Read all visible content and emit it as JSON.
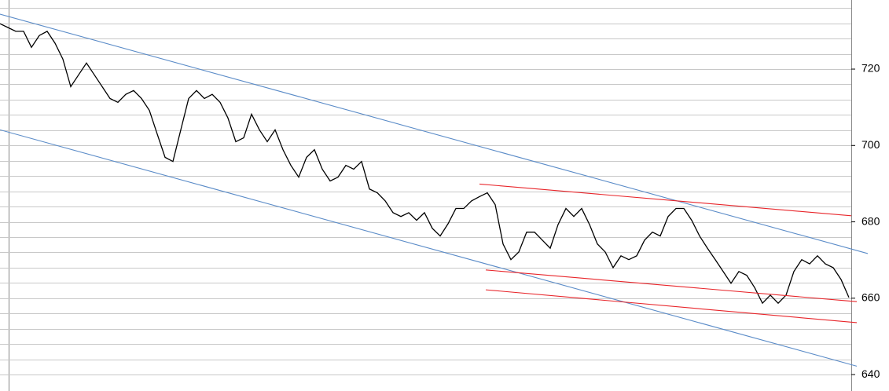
{
  "chart_data": {
    "type": "line",
    "color": "#000000",
    "values": [
      731.9,
      730.9,
      729.9,
      729.9,
      725.7,
      728.8,
      729.9,
      726.8,
      722.6,
      715.4,
      718.5,
      721.6,
      718.5,
      715.4,
      712.3,
      711.3,
      713.4,
      714.4,
      712.3,
      709.2,
      703.0,
      696.9,
      695.8,
      704.1,
      712.3,
      714.4,
      712.3,
      713.4,
      711.3,
      707.2,
      701.0,
      702.0,
      708.2,
      704.1,
      701.0,
      704.1,
      698.9,
      694.8,
      691.7,
      696.9,
      698.9,
      693.8,
      690.7,
      691.7,
      694.8,
      693.8,
      695.8,
      688.6,
      687.6,
      685.5,
      682.4,
      681.4,
      682.4,
      680.4,
      682.4,
      678.3,
      676.3,
      679.5,
      683.5,
      683.5,
      685.5,
      686.6,
      687.6,
      684.5,
      674.2,
      670.1,
      672.1,
      677.3,
      677.3,
      675.2,
      673.1,
      679.3,
      683.5,
      681.4,
      683.5,
      679.3,
      674.2,
      672.1,
      668.0,
      671.1,
      670.1,
      671.1,
      675.2,
      677.3,
      676.3,
      681.4,
      683.5,
      683.5,
      680.4,
      676.3,
      673.1,
      670.1,
      667.0,
      663.9,
      667.0,
      666.0,
      662.8,
      658.7,
      660.8,
      658.7,
      660.8,
      667.0,
      670.1,
      669.0,
      671.1,
      669.0,
      668.0,
      664.9,
      660.2
    ],
    "ylim": [
      635.7,
      738.1
    ],
    "yticks": [
      640,
      660,
      680,
      700,
      720
    ],
    "grid_yticks": [
      640,
      644,
      648,
      652,
      656,
      660,
      664,
      668,
      672,
      676,
      680,
      684,
      688,
      692,
      696,
      700,
      704,
      708,
      712,
      716,
      720,
      724,
      728,
      732,
      736
    ],
    "grid": true,
    "trendlines": [
      {
        "color": "#5b8cc8",
        "x": [
          0,
          110.4
        ],
        "y": [
          734.4,
          671.7
        ]
      },
      {
        "color": "#5b8cc8",
        "x": [
          0,
          109
        ],
        "y": [
          704.1,
          642.2
        ]
      },
      {
        "color": "#e8252a",
        "x": [
          61,
          108.3
        ],
        "y": [
          689.9,
          681.6
        ]
      },
      {
        "color": "#e8252a",
        "x": [
          61.8,
          109
        ],
        "y": [
          667.4,
          659.1
        ]
      },
      {
        "color": "#e8252a",
        "x": [
          61.8,
          109
        ],
        "y": [
          662.2,
          653.6
        ]
      }
    ]
  }
}
